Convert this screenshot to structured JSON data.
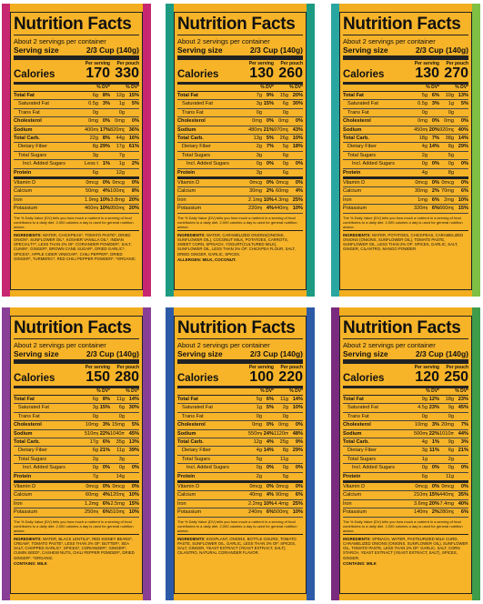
{
  "common": {
    "title": "Nutrition Facts",
    "servings": "About 2 servings per container",
    "serving_size_label": "Serving size",
    "serving_size_value": "2/3 Cup (140g)",
    "per_serving": "Per serving",
    "per_pouch": "Per pouch",
    "calories_label": "Calories",
    "dv_label": "% DV*",
    "nutrient_names": [
      "Total Fat",
      "Saturated Fat",
      "Trans Fat",
      "Cholesterol",
      "Sodium",
      "Total Carb.",
      "Dietary Fiber",
      "Total Sugars",
      "Incl. Added Sugars",
      "Protein",
      "Vitamin D",
      "Calcium",
      "Iron",
      "Potassium"
    ],
    "footnote": "The % Daily Value (DV) tells you how much a nutrient in a serving of food contributes to a daily diet. 2,000 calories a day is used for general nutrition advice.",
    "ingredients_label": "INGREDIENTS:"
  },
  "panels": [
    {
      "accent_left": "#c72770",
      "accent_right": "#c72770",
      "cal_serving": "170",
      "cal_pouch": "330",
      "rows": [
        [
          "6g",
          "8%",
          "12g",
          "15%"
        ],
        [
          "0.5g",
          "3%",
          "1g",
          "5%"
        ],
        [
          "0g",
          "",
          "0g",
          ""
        ],
        [
          "0mg",
          "0%",
          "0mg",
          "0%"
        ],
        [
          "400mg",
          "17%",
          "820mg",
          "36%"
        ],
        [
          "22g",
          "8%",
          "44g",
          "16%"
        ],
        [
          "8g",
          "29%",
          "17g",
          "61%"
        ],
        [
          "3g",
          "",
          "7g",
          ""
        ],
        [
          "Less than 1g",
          "1%",
          "1g",
          "2%"
        ],
        [
          "6g",
          "",
          "12g",
          ""
        ],
        [
          "0mcg",
          "0%",
          "0mcg",
          "0%"
        ],
        [
          "50mg",
          "4%",
          "100mg",
          "8%"
        ],
        [
          "1.9mg",
          "10%",
          "3.8mg",
          "20%"
        ],
        [
          "460mg",
          "10%",
          "950mg",
          "20%"
        ]
      ],
      "ingredients": "WATER, CHICKPEAS*, TOMATO PASTE*, DRIED ONION*, SUNFLOWER OIL*, KOSHER VANILLA OIL*, INDIAN SPECIALTY*, LESS THAN 2% OF: CORIANDER POWDER*, SALT, CUMIN*, GINGER*, BROWN CANE SUGAR*, DRIED GARLIC*, SPICES*, APPLE CIDER VINEGAR*, CHILI PEPPER*, DRIED GINGER*, TURMERIC*, RED CHILI PEPPER POWDER*. *ORGANIC",
      "allergen": ""
    },
    {
      "accent_left": "#1c9b82",
      "accent_right": "#1c9b82",
      "cal_serving": "130",
      "cal_pouch": "260",
      "rows": [
        [
          "7g",
          "9%",
          "15g",
          "20%"
        ],
        [
          "3g",
          "15%",
          "6g",
          "30%"
        ],
        [
          "0g",
          "",
          "0g",
          ""
        ],
        [
          "0mg",
          "0%",
          "0mg",
          "0%"
        ],
        [
          "480mg",
          "21%",
          "970mg",
          "43%"
        ],
        [
          "13g",
          "5%",
          "26g",
          "10%"
        ],
        [
          "2g",
          "7%",
          "5g",
          "18%"
        ],
        [
          "3g",
          "",
          "6g",
          ""
        ],
        [
          "0g",
          "0%",
          "0g",
          "0%"
        ],
        [
          "3g",
          "",
          "6g",
          ""
        ],
        [
          "0mcg",
          "0%",
          "0mcg",
          "0%"
        ],
        [
          "30mg",
          "2%",
          "60mg",
          "4%"
        ],
        [
          "2.1mg",
          "10%",
          "4.3mg",
          "25%"
        ],
        [
          "220mg",
          "4%",
          "440mg",
          "10%"
        ]
      ],
      "ingredients": "WATER, CARAMELIZED ONIONS(ONIONS, SUNFLOWER OIL), COCONUT MILK, POTATOES, CARROTS, SWEET CORN, SPINACH, YOGURT(CULTURED MILK), SUNFLOWER OIL, LESS THAN 2% OF: CHICKPEA FLOUR, SALT, DRIED GINGER, GARLIC, SPICES.",
      "allergen": "ALLERGEN: MILK, COCONUT."
    },
    {
      "accent_left": "#2aa6a0",
      "accent_right": "#7fbf43",
      "cal_serving": "130",
      "cal_pouch": "270",
      "rows": [
        [
          "5g",
          "6%",
          "10g",
          "13%"
        ],
        [
          "0.5g",
          "3%",
          "1g",
          "5%"
        ],
        [
          "0g",
          "",
          "0g",
          ""
        ],
        [
          "0mg",
          "0%",
          "0mg",
          "0%"
        ],
        [
          "450mg",
          "20%",
          "920mg",
          "40%"
        ],
        [
          "18g",
          "7%",
          "38g",
          "14%"
        ],
        [
          "4g",
          "14%",
          "8g",
          "29%"
        ],
        [
          "2g",
          "",
          "5g",
          ""
        ],
        [
          "0g",
          "0%",
          "0g",
          "0%"
        ],
        [
          "4g",
          "",
          "8g",
          ""
        ],
        [
          "0mcg",
          "0%",
          "0mcg",
          "0%"
        ],
        [
          "30mg",
          "2%",
          "70mg",
          "6%"
        ],
        [
          "1mg",
          "6%",
          "2mg",
          "10%"
        ],
        [
          "320mg",
          "6%",
          "660mg",
          "15%"
        ]
      ],
      "ingredients": "WATER, POTATOES, CHICKPEAS, CARAMELIZED ONIONS (ONIONS, SUNFLOWER OIL), TOMATO PASTE, SUNFLOWER OIL, LESS THAN 2% OF: SPICES, GARLIC, SALT, GINGER, CILANTRO, MANGO POWDER.",
      "allergen": ""
    },
    {
      "accent_left": "#8a3f97",
      "accent_right": "#8a3f97",
      "cal_serving": "150",
      "cal_pouch": "280",
      "rows": [
        [
          "6g",
          "8%",
          "11g",
          "14%"
        ],
        [
          "3g",
          "15%",
          "6g",
          "30%"
        ],
        [
          "0g",
          "",
          "0g",
          ""
        ],
        [
          "10mg",
          "3%",
          "15mg",
          "5%"
        ],
        [
          "510mg",
          "22%",
          "1040mg",
          "45%"
        ],
        [
          "17g",
          "6%",
          "35g",
          "13%"
        ],
        [
          "6g",
          "21%",
          "11g",
          "39%"
        ],
        [
          "2g",
          "",
          "3g",
          ""
        ],
        [
          "0g",
          "0%",
          "0g",
          "0%"
        ],
        [
          "7g",
          "",
          "14g",
          ""
        ],
        [
          "0mcg",
          "0%",
          "0mcg",
          "0%"
        ],
        [
          "60mg",
          "4%",
          "120mg",
          "10%"
        ],
        [
          "1.2mg",
          "6%",
          "2.5mg",
          "15%"
        ],
        [
          "250mg",
          "6%",
          "510mg",
          "10%"
        ]
      ],
      "ingredients": "WATER, BLACK LENTILS*, RED KIDNEY BEANS*, CREAM*, TOMATO PASTE*, LESS THAN 2% OF: BUTTER*, SEA SALT, CHOPPED GARLIC*, SPICES*, CORIANDER*, GINGER*, CUMIN SEED*, CASHEW NUTS, CHILI PEPPER POWDER*, DRIED GINGER*. *ORGANIC",
      "allergen": "CONTAINS: MILK"
    },
    {
      "accent_left": "#2d5aa6",
      "accent_right": "#2d5aa6",
      "cal_serving": "100",
      "cal_pouch": "220",
      "rows": [
        [
          "5g",
          "6%",
          "11g",
          "14%"
        ],
        [
          "1g",
          "5%",
          "2g",
          "10%"
        ],
        [
          "0g",
          "",
          "0g",
          ""
        ],
        [
          "0mg",
          "0%",
          "0mg",
          "0%"
        ],
        [
          "550mg",
          "24%",
          "1120mg",
          "48%"
        ],
        [
          "12g",
          "4%",
          "25g",
          "9%"
        ],
        [
          "4g",
          "14%",
          "8g",
          "29%"
        ],
        [
          "5g",
          "",
          "11g",
          ""
        ],
        [
          "0g",
          "0%",
          "0g",
          "0%"
        ],
        [
          "2g",
          "",
          "5g",
          ""
        ],
        [
          "0mcg",
          "0%",
          "0mcg",
          "0%"
        ],
        [
          "40mg",
          "4%",
          "90mg",
          "6%"
        ],
        [
          "2.2mg",
          "10%",
          "4.4mg",
          "25%"
        ],
        [
          "240mg",
          "6%",
          "500mg",
          "10%"
        ]
      ],
      "ingredients": "EGGPLANT, ONIONS, BOTTLE GOURD, TOMATO PASTE, SUNFLOWER OIL, GARLIC, LESS THAN 2% OF: SPICES, SALT, GINGER, YEAST EXTRACT (YEAST EXTRACT, SALT), CILANTRO, NATURAL CORIANDER FLAVOR.",
      "allergen": ""
    },
    {
      "accent_left": "#7a2a7e",
      "accent_right": "#3f9c4a",
      "cal_serving": "120",
      "cal_pouch": "250",
      "rows": [
        [
          "9g",
          "12%",
          "18g",
          "23%"
        ],
        [
          "4.5g",
          "23%",
          "9g",
          "45%"
        ],
        [
          "0g",
          "",
          "0g",
          ""
        ],
        [
          "10mg",
          "3%",
          "20mg",
          "7%"
        ],
        [
          "500mg",
          "22%",
          "1010mg",
          "44%"
        ],
        [
          "4g",
          "1%",
          "9g",
          "3%"
        ],
        [
          "3g",
          "11%",
          "6g",
          "21%"
        ],
        [
          "1g",
          "",
          "2g",
          ""
        ],
        [
          "0g",
          "0%",
          "0g",
          "0%"
        ],
        [
          "6g",
          "",
          "11g",
          ""
        ],
        [
          "0mcg",
          "0%",
          "0mcg",
          "0%"
        ],
        [
          "210mg",
          "15%",
          "440mg",
          "35%"
        ],
        [
          "3.6mg",
          "20%",
          "7.4mg",
          "40%"
        ],
        [
          "140mg",
          "2%",
          "280mg",
          "6%"
        ]
      ],
      "ingredients": "SPINACH, WATER, PASTEURIZED MILK CURD, CARAMELIZED ONIONS (ONIONS, SUNFLOWER OIL), SUNFLOWER OIL, TOMATO PASTE, LESS THAN 2% OF: GARLIC, SALT, CORN STARCH, YEAST EXTRACT (YEAST EXTRACT, SALT), SPICES, GINGER.",
      "allergen": "CONTAINS: MILK"
    }
  ]
}
